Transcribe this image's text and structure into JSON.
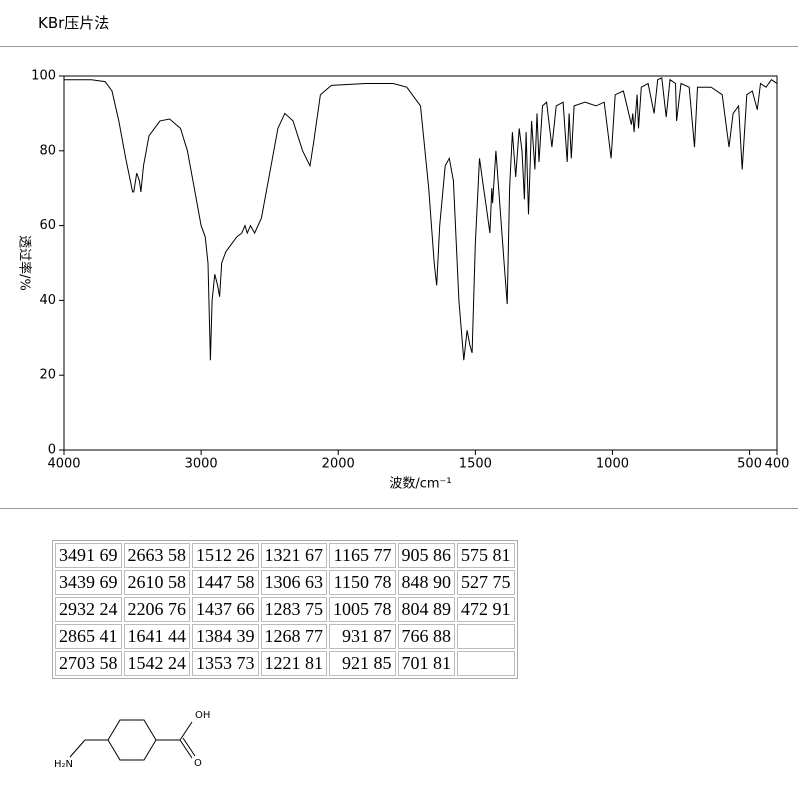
{
  "header": {
    "title": "KBr压片法"
  },
  "chart_data": {
    "type": "line",
    "y_label": "透过率/%",
    "x_label": "波数/cm⁻¹",
    "color": "#000000",
    "xlim": [
      4000,
      400
    ],
    "ylim": [
      0,
      100
    ],
    "x_scale_break": 2000,
    "x_scale_ratio": 2,
    "xticks": [
      4000,
      3000,
      2000,
      1500,
      1000,
      500,
      400
    ],
    "yticks": [
      0,
      20,
      40,
      60,
      80,
      100
    ],
    "x": [
      4000,
      3800,
      3700,
      3650,
      3600,
      3550,
      3500,
      3491,
      3470,
      3450,
      3439,
      3420,
      3380,
      3300,
      3230,
      3150,
      3100,
      3050,
      3000,
      2970,
      2950,
      2932,
      2920,
      2900,
      2880,
      2865,
      2850,
      2820,
      2780,
      2740,
      2703,
      2680,
      2663,
      2640,
      2610,
      2560,
      2500,
      2440,
      2390,
      2330,
      2260,
      2220,
      2206,
      2180,
      2130,
      2050,
      1900,
      1800,
      1750,
      1700,
      1670,
      1650,
      1641,
      1630,
      1610,
      1595,
      1580,
      1560,
      1542,
      1530,
      1520,
      1512,
      1500,
      1485,
      1470,
      1460,
      1447,
      1440,
      1437,
      1425,
      1410,
      1395,
      1384,
      1375,
      1365,
      1353,
      1340,
      1330,
      1321,
      1315,
      1306,
      1295,
      1283,
      1275,
      1268,
      1255,
      1240,
      1221,
      1205,
      1180,
      1165,
      1158,
      1150,
      1140,
      1100,
      1060,
      1030,
      1005,
      990,
      960,
      931,
      926,
      921,
      910,
      905,
      895,
      870,
      848,
      835,
      820,
      804,
      790,
      770,
      766,
      750,
      720,
      701,
      690,
      640,
      600,
      575,
      560,
      540,
      527,
      510,
      490,
      472,
      460,
      440,
      420,
      400
    ],
    "values": [
      99,
      99,
      98.5,
      96,
      88,
      78,
      69,
      69,
      74,
      72,
      69,
      76,
      84,
      88,
      88.5,
      86,
      80,
      70,
      60,
      57,
      50,
      24,
      40,
      47,
      44,
      41,
      50,
      53,
      55,
      57,
      58,
      60,
      58,
      60,
      58,
      62,
      74,
      86,
      90,
      88,
      80,
      77,
      76,
      82,
      95,
      97.5,
      98,
      98,
      97,
      92,
      70,
      50,
      44,
      60,
      76,
      78,
      72,
      40,
      24,
      32,
      28,
      26,
      55,
      78,
      70,
      65,
      58,
      70,
      66,
      80,
      65,
      50,
      39,
      70,
      85,
      73,
      86,
      80,
      67,
      85,
      63,
      88,
      75,
      90,
      77,
      92,
      93,
      81,
      92,
      93,
      77,
      90,
      78,
      92,
      93,
      92,
      93,
      78,
      95,
      96,
      87,
      90,
      85,
      95,
      86,
      97,
      98,
      90,
      99,
      99.5,
      89,
      99,
      98,
      88,
      98,
      97,
      81,
      97,
      97,
      95,
      81,
      90,
      92,
      75,
      95,
      96,
      91,
      98,
      97,
      99,
      98
    ]
  },
  "table": {
    "columns": [
      [
        "3491 69",
        "3439 69",
        "2932 24",
        "2865 41",
        "2703 58"
      ],
      [
        "2663 58",
        "2610 58",
        "2206 76",
        "1641 44",
        "1542 24"
      ],
      [
        "1512 26",
        "1447 58",
        "1437 66",
        "1384 39",
        "1353 73"
      ],
      [
        "1321 67",
        "1306 63",
        "1283 75",
        "1268 77",
        "1221 81"
      ],
      [
        "1165 77",
        "1150 78",
        "1005 78",
        "931 87",
        "921 85"
      ],
      [
        "905 86",
        "848 90",
        "804 89",
        "766 88",
        "701 81"
      ],
      [
        "575 81",
        "527 75",
        "472 91"
      ]
    ]
  },
  "molecule": {
    "labels": [
      "OH",
      "O",
      "H₂N"
    ]
  }
}
